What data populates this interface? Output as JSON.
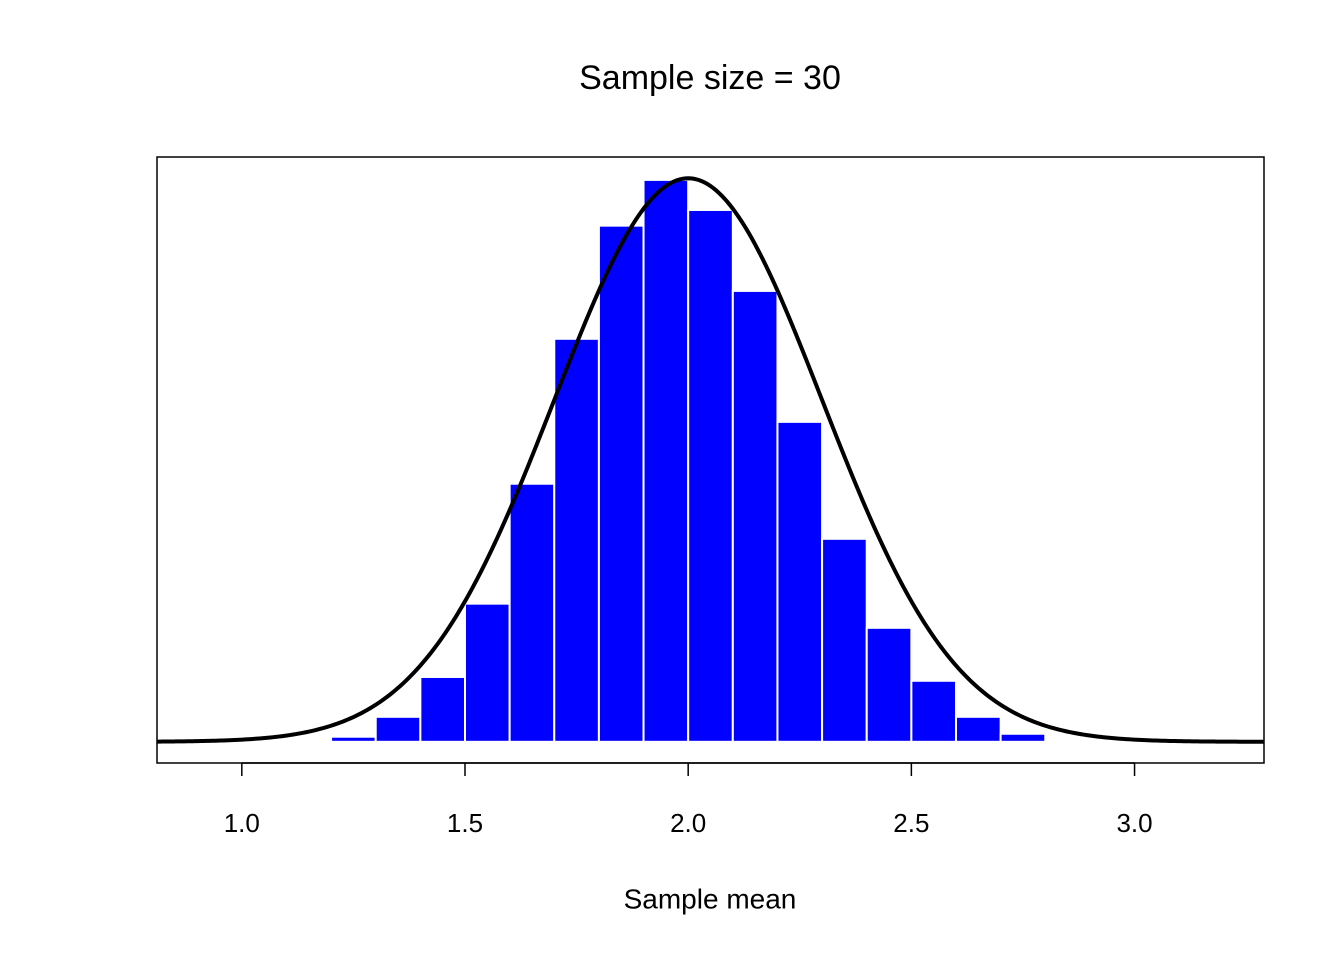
{
  "chart_data": {
    "type": "histogram",
    "title": "Sample size = 30",
    "x_label": "Sample mean",
    "bins": [
      1.2,
      1.3,
      1.4,
      1.5,
      1.6,
      1.7,
      1.8,
      1.9,
      2.0,
      2.1,
      2.2,
      2.3,
      2.4,
      2.5,
      2.6,
      2.7,
      2.8
    ],
    "values": [
      0.012,
      0.059,
      0.153,
      0.326,
      0.609,
      0.951,
      1.218,
      1.326,
      1.255,
      1.064,
      0.755,
      0.479,
      0.269,
      0.144,
      0.059,
      0.019
    ],
    "color": "#0000ff",
    "edge_color": "#ffffff",
    "curve": {
      "mean": 2,
      "sd": 0.3,
      "color": "#000000"
    },
    "xlim": [
      0.81,
      3.29
    ],
    "ylim": [
      -0.05,
      1.38
    ],
    "xticks": [
      {
        "value": 1,
        "label": "1.0"
      },
      {
        "value": 1.5,
        "label": "1.5"
      },
      {
        "value": 2,
        "label": "2.0"
      },
      {
        "value": 2.5,
        "label": "2.5"
      },
      {
        "value": 3,
        "label": "3.0"
      }
    ]
  }
}
